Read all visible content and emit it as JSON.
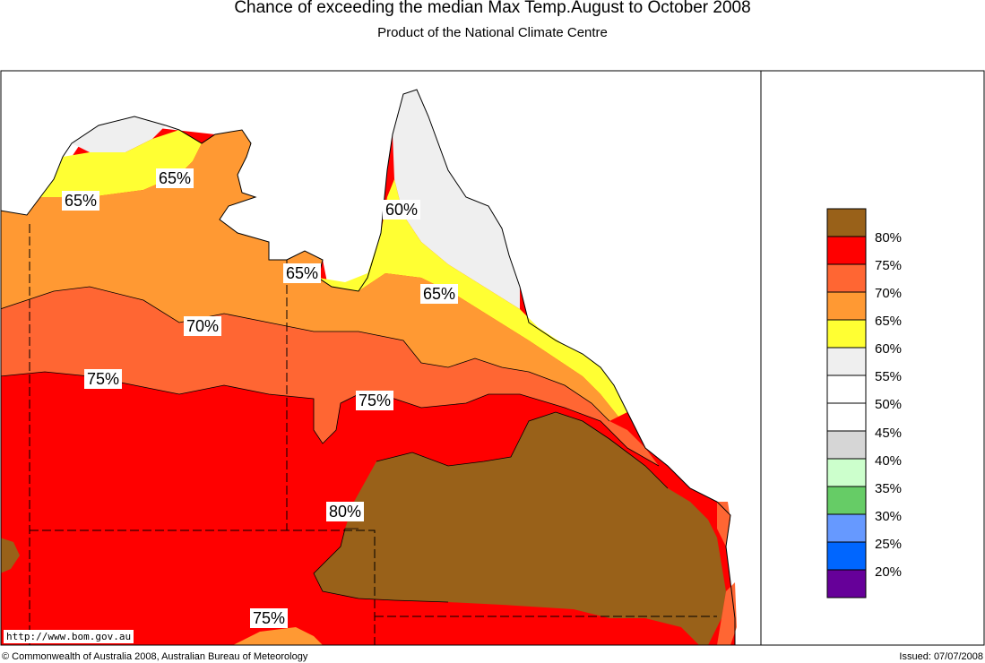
{
  "title": "Chance of exceeding the median Max Temp.August to October 2008",
  "subtitle": "Product of the National Climate Centre",
  "map_labels": [
    "65%",
    "65%",
    "60%",
    "65%",
    "65%",
    "70%",
    "75%",
    "75%",
    "80%",
    "75%"
  ],
  "legend": {
    "labels": [
      "80%",
      "75%",
      "70%",
      "65%",
      "60%",
      "55%",
      "50%",
      "45%",
      "40%",
      "35%",
      "30%",
      "25%",
      "20%"
    ],
    "colors": [
      "#996119",
      "#ff0000",
      "#ff6633",
      "#ff9933",
      "#ffff33",
      "#efefef",
      "#ffffff",
      "#ffffff",
      "#d6d6d6",
      "#ccffcc",
      "#66cc66",
      "#6699ff",
      "#0066ff",
      "#660099"
    ]
  },
  "map_colors": {
    "80": "#996119",
    "75": "#ff0000",
    "70": "#ff6633",
    "65": "#ff9933",
    "60": "#ffff33",
    "55": "#efefef"
  },
  "url": "http://www.bom.gov.au",
  "copyright": "© Commonwealth of Australia 2008, Australian Bureau of Meteorology",
  "issued": "Issued: 07/07/2008"
}
